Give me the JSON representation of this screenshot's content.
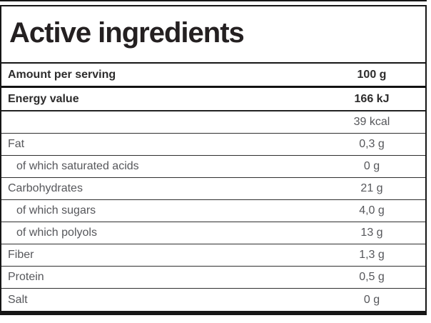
{
  "panel": {
    "title": "Active ingredients"
  },
  "table": {
    "header": {
      "label": "Amount per serving",
      "value": "100 g"
    },
    "rows": [
      {
        "label": "Energy value",
        "value": "166 kJ"
      },
      {
        "label": "",
        "value": "39 kcal"
      },
      {
        "label": "Fat",
        "value": "0,3 g"
      },
      {
        "label": "of which saturated acids",
        "value": "0 g"
      },
      {
        "label": "Carbohydrates",
        "value": "21 g"
      },
      {
        "label": "of which sugars",
        "value": "4,0 g"
      },
      {
        "label": "of which polyols",
        "value": "13 g"
      },
      {
        "label": "Fiber",
        "value": "1,3 g"
      },
      {
        "label": "Protein",
        "value": "0,5 g"
      },
      {
        "label": "Salt",
        "value": "0 g"
      }
    ]
  },
  "colors": {
    "border": "#161616",
    "title_text": "#242021",
    "bold_text": "#2d2c2c",
    "regular_text": "#56575b",
    "separator": "#2f2f2f"
  }
}
